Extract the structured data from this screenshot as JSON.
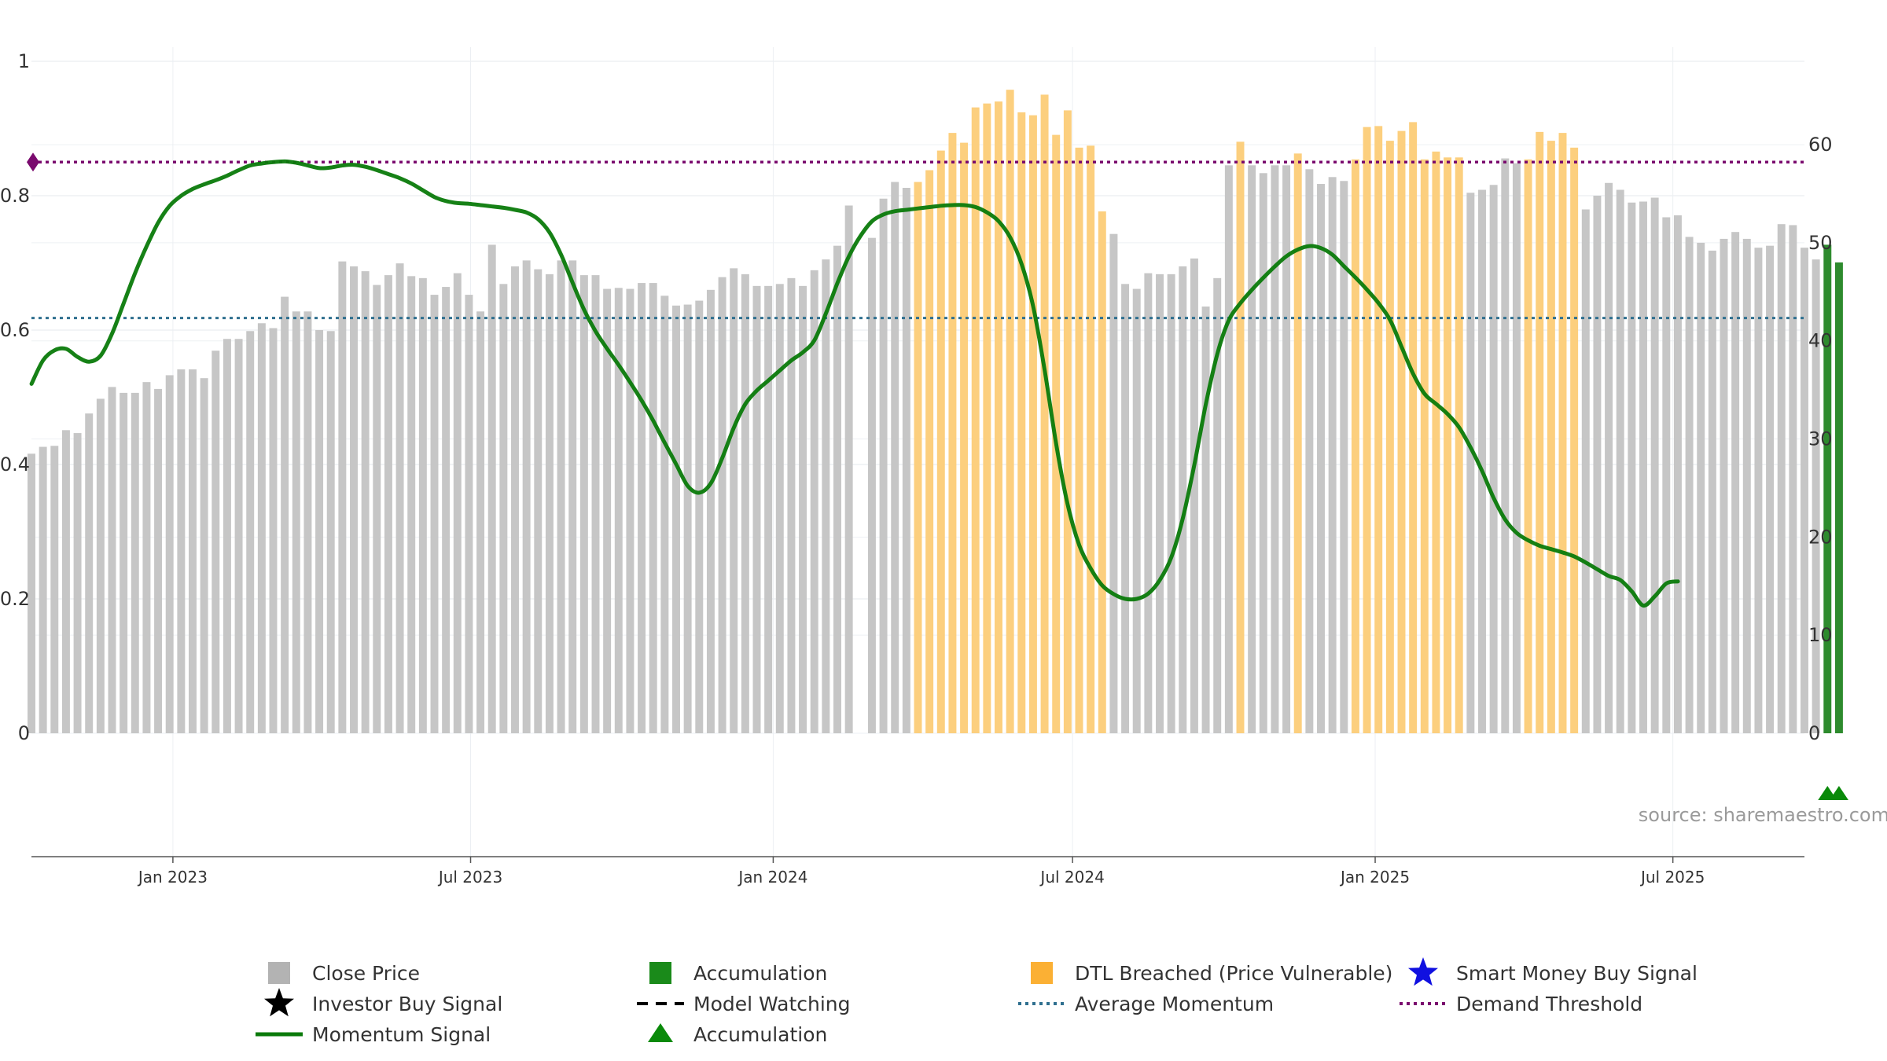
{
  "source_label": "source: sharemaestro.com",
  "legend": [
    {
      "label": "Close Price",
      "icon": "square",
      "color": "#b3b3b3"
    },
    {
      "label": "Accumulation",
      "icon": "square",
      "color": "#1a8a1a"
    },
    {
      "label": "DTL Breached (Price Vulnerable)",
      "icon": "square",
      "color": "#fbb034"
    },
    {
      "label": "Smart Money Buy Signal",
      "icon": "star",
      "color": "#1010e0"
    },
    {
      "label": "Investor Buy Signal",
      "icon": "star",
      "color": "#000000"
    },
    {
      "label": "Model Watching",
      "icon": "dash",
      "color": "#000000"
    },
    {
      "label": "Average Momentum",
      "icon": "dot",
      "color": "#2f6f8f"
    },
    {
      "label": "Demand Threshold",
      "icon": "dot",
      "color": "#7a0a6e"
    },
    {
      "label": "Momentum Signal",
      "icon": "line",
      "color": "#0a7a0a"
    },
    {
      "label": "Accumulation",
      "icon": "triangle",
      "color": "#0a8a0a"
    }
  ],
  "chart_data": {
    "type": "bar",
    "left_axis": {
      "ticks": [
        0,
        0.2,
        0.4,
        0.6,
        0.8,
        1
      ],
      "labels": [
        "0",
        "0.2",
        "0.4",
        "0.6",
        "0.8",
        "1"
      ],
      "range": [
        -0.19,
        1.0
      ]
    },
    "right_axis": {
      "ticks": [
        0,
        10,
        20,
        30,
        40,
        50,
        60
      ],
      "labels": [
        "0",
        "10",
        "20",
        "30",
        "40",
        "50",
        "60"
      ],
      "range": [
        0,
        68.5
      ]
    },
    "x_axis": {
      "range": [
        "2022-10-07",
        "2025-09-19"
      ],
      "ticks": [
        {
          "date": "2023-01-01",
          "label": "Jan 2023"
        },
        {
          "date": "2023-07-01",
          "label": "Jul 2023"
        },
        {
          "date": "2024-01-01",
          "label": "Jan 2024"
        },
        {
          "date": "2024-07-01",
          "label": "Jul 2024"
        },
        {
          "date": "2025-01-01",
          "label": "Jan 2025"
        },
        {
          "date": "2025-07-01",
          "label": "Jul 2025"
        }
      ]
    },
    "grid": true,
    "legend_position": "bottom",
    "close_price": {
      "start_date": "2022-10-07",
      "interval_days": 7,
      "values": [
        28.5,
        29.2,
        29.3,
        30.9,
        30.6,
        32.6,
        34.1,
        35.3,
        34.7,
        34.7,
        35.8,
        35.1,
        36.5,
        37.1,
        37.1,
        36.2,
        39.0,
        40.2,
        40.2,
        41.0,
        41.8,
        41.3,
        44.5,
        43.0,
        43.0,
        41.1,
        41.0,
        48.1,
        47.6,
        47.1,
        45.7,
        46.7,
        47.9,
        46.6,
        46.4,
        44.7,
        45.5,
        46.9,
        44.7,
        43.0,
        49.8,
        45.8,
        47.6,
        48.2,
        47.3,
        46.8,
        48.2,
        48.2,
        46.7,
        46.7,
        45.3,
        45.4,
        45.3,
        45.9,
        45.9,
        44.6,
        43.6,
        43.7,
        44.1,
        45.2,
        46.5,
        47.4,
        46.8,
        45.6,
        45.6,
        45.8,
        46.4,
        45.6,
        47.2,
        48.3,
        49.7,
        53.8,
        null,
        50.5,
        54.5,
        56.2,
        55.6,
        56.2,
        57.4,
        59.4,
        61.2,
        60.2,
        63.8,
        64.2,
        64.4,
        65.6,
        63.3,
        63.0,
        65.1,
        61.0,
        63.5,
        59.7,
        59.9,
        53.2,
        50.9,
        45.8,
        45.3,
        46.9,
        46.8,
        46.8,
        47.6,
        48.4,
        43.5,
        46.4,
        57.9,
        60.3,
        57.9,
        57.1,
        57.9,
        57.9,
        59.1,
        57.5,
        56.0,
        56.7,
        56.3,
        58.5,
        61.8,
        61.9,
        60.4,
        61.4,
        62.3,
        58.5,
        59.3,
        58.7,
        58.7,
        55.1,
        55.4,
        55.9,
        58.6,
        58.1,
        58.5,
        61.3,
        60.4,
        61.2,
        59.7,
        53.4,
        54.8,
        56.1,
        55.4,
        54.1,
        54.2,
        54.6,
        52.6,
        52.8,
        50.6,
        50.0,
        49.2,
        50.4,
        51.1,
        50.4,
        49.5,
        49.7,
        51.9,
        51.8,
        49.5,
        48.3
      ]
    },
    "dtl_breached": [
      {
        "from": 77,
        "to": 93
      },
      {
        "from": 105,
        "to": 105
      },
      {
        "from": 110,
        "to": 110
      },
      {
        "from": 115,
        "to": 124
      },
      {
        "from": 130,
        "to": 134
      }
    ],
    "accumulation_bars": [
      {
        "index": 156,
        "value": 49.8
      },
      {
        "index": 157,
        "value": 48.0
      }
    ],
    "accumulation_markers": [
      {
        "index": 156
      },
      {
        "index": 157
      }
    ],
    "momentum_signal": {
      "start_date": "2022-10-07",
      "interval_days": 7,
      "values": [
        0.52,
        0.555,
        0.57,
        0.572,
        0.56,
        0.553,
        0.562,
        0.595,
        0.64,
        0.685,
        0.725,
        0.76,
        0.785,
        0.8,
        0.81,
        0.817,
        0.823,
        0.83,
        0.838,
        0.845,
        0.848,
        0.85,
        0.851,
        0.849,
        0.845,
        0.841,
        0.842,
        0.845,
        0.846,
        0.843,
        0.838,
        0.832,
        0.826,
        0.818,
        0.808,
        0.798,
        0.792,
        0.789,
        0.788,
        0.786,
        0.784,
        0.782,
        0.779,
        0.775,
        0.765,
        0.745,
        0.712,
        0.67,
        0.63,
        0.598,
        0.572,
        0.548,
        0.522,
        0.495,
        0.465,
        0.432,
        0.4,
        0.368,
        0.358,
        0.372,
        0.41,
        0.455,
        0.49,
        0.51,
        0.525,
        0.54,
        0.555,
        0.567,
        0.585,
        0.625,
        0.67,
        0.71,
        0.74,
        0.762,
        0.772,
        0.777,
        0.779,
        0.781,
        0.783,
        0.785,
        0.786,
        0.786,
        0.783,
        0.775,
        0.762,
        0.738,
        0.698,
        0.635,
        0.54,
        0.43,
        0.34,
        0.28,
        0.245,
        0.22,
        0.207,
        0.2,
        0.2,
        0.208,
        0.228,
        0.262,
        0.32,
        0.4,
        0.49,
        0.565,
        0.615,
        0.64,
        0.66,
        0.678,
        0.695,
        0.71,
        0.72,
        0.725,
        0.722,
        0.712,
        0.695,
        0.678,
        0.66,
        0.64,
        0.615,
        0.575,
        0.535,
        0.505,
        0.49,
        0.475,
        0.455,
        0.425,
        0.39,
        0.35,
        0.318,
        0.298,
        0.287,
        0.279,
        0.274,
        0.269,
        0.263,
        0.254,
        0.244,
        0.234,
        0.228,
        0.211,
        0.19,
        0.204,
        0.223,
        0.226
      ]
    },
    "average_momentum": 0.618,
    "demand_threshold": 0.85
  }
}
